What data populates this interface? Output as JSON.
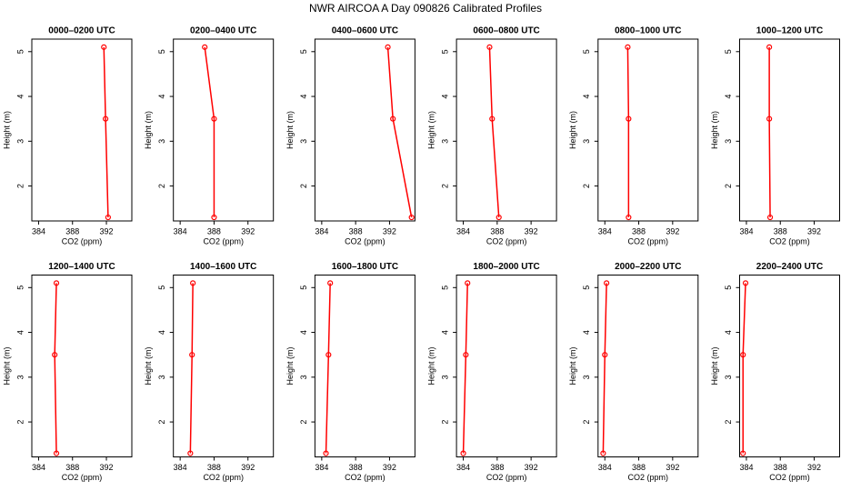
{
  "title": "NWR AIRCOA A  Day 090826  Calibrated Profiles",
  "chart_data": [
    {
      "type": "line",
      "title": "0000–0200 UTC",
      "x_label": "CO2 (ppm)",
      "y_label": "Height (m)",
      "x": [
        391.7,
        391.9,
        392.2
      ],
      "series": [
        {
          "color": "#ff0000",
          "values": [
            5.1,
            3.5,
            1.3
          ]
        }
      ],
      "xlim": [
        383.2,
        395
      ],
      "ylim": [
        1.22,
        5.28
      ],
      "xticks": [
        384,
        388,
        392
      ],
      "yticks": [
        2,
        3,
        4,
        5
      ]
    },
    {
      "type": "line",
      "title": "0200–0400 UTC",
      "x_label": "CO2 (ppm)",
      "y_label": "Height (m)",
      "x": [
        386.9,
        388.0,
        388.0
      ],
      "series": [
        {
          "color": "#ff0000",
          "values": [
            5.1,
            3.5,
            1.3
          ]
        }
      ],
      "xlim": [
        383.2,
        395
      ],
      "ylim": [
        1.22,
        5.28
      ],
      "xticks": [
        384,
        388,
        392
      ],
      "yticks": [
        2,
        3,
        4,
        5
      ]
    },
    {
      "type": "line",
      "title": "0400–0600 UTC",
      "x_label": "CO2 (ppm)",
      "y_label": "Height (m)",
      "x": [
        391.8,
        392.4,
        394.6
      ],
      "series": [
        {
          "color": "#ff0000",
          "values": [
            5.1,
            3.5,
            1.3
          ]
        }
      ],
      "xlim": [
        383.2,
        395
      ],
      "ylim": [
        1.22,
        5.28
      ],
      "xticks": [
        384,
        388,
        392
      ],
      "yticks": [
        2,
        3,
        4,
        5
      ]
    },
    {
      "type": "line",
      "title": "0600–0800 UTC",
      "x_label": "CO2 (ppm)",
      "y_label": "Height (m)",
      "x": [
        387.1,
        387.4,
        388.2
      ],
      "series": [
        {
          "color": "#ff0000",
          "values": [
            5.1,
            3.5,
            1.3
          ]
        }
      ],
      "xlim": [
        383.2,
        395
      ],
      "ylim": [
        1.22,
        5.28
      ],
      "xticks": [
        384,
        388,
        392
      ],
      "yticks": [
        2,
        3,
        4,
        5
      ]
    },
    {
      "type": "line",
      "title": "0800–1000 UTC",
      "x_label": "CO2 (ppm)",
      "y_label": "Height (m)",
      "x": [
        386.7,
        386.8,
        386.8
      ],
      "series": [
        {
          "color": "#ff0000",
          "values": [
            5.1,
            3.5,
            1.3
          ]
        }
      ],
      "xlim": [
        383.2,
        395
      ],
      "ylim": [
        1.22,
        5.28
      ],
      "xticks": [
        384,
        388,
        392
      ],
      "yticks": [
        2,
        3,
        4,
        5
      ]
    },
    {
      "type": "line",
      "title": "1000–1200 UTC",
      "x_label": "CO2 (ppm)",
      "y_label": "Height (m)",
      "x": [
        386.7,
        386.7,
        386.8
      ],
      "series": [
        {
          "color": "#ff0000",
          "values": [
            5.1,
            3.5,
            1.3
          ]
        }
      ],
      "xlim": [
        383.2,
        395
      ],
      "ylim": [
        1.22,
        5.28
      ],
      "xticks": [
        384,
        388,
        392
      ],
      "yticks": [
        2,
        3,
        4,
        5
      ]
    },
    {
      "type": "line",
      "title": "1200–1400 UTC",
      "x_label": "CO2 (ppm)",
      "y_label": "Height (m)",
      "x": [
        386.1,
        385.9,
        386.1
      ],
      "series": [
        {
          "color": "#ff0000",
          "values": [
            5.1,
            3.5,
            1.3
          ]
        }
      ],
      "xlim": [
        383.2,
        395
      ],
      "ylim": [
        1.22,
        5.28
      ],
      "xticks": [
        384,
        388,
        392
      ],
      "yticks": [
        2,
        3,
        4,
        5
      ]
    },
    {
      "type": "line",
      "title": "1400–1600 UTC",
      "x_label": "CO2 (ppm)",
      "y_label": "Height (m)",
      "x": [
        385.5,
        385.4,
        385.2
      ],
      "series": [
        {
          "color": "#ff0000",
          "values": [
            5.1,
            3.5,
            1.3
          ]
        }
      ],
      "xlim": [
        383.2,
        395
      ],
      "ylim": [
        1.22,
        5.28
      ],
      "xticks": [
        384,
        388,
        392
      ],
      "yticks": [
        2,
        3,
        4,
        5
      ]
    },
    {
      "type": "line",
      "title": "1600–1800 UTC",
      "x_label": "CO2 (ppm)",
      "y_label": "Height (m)",
      "x": [
        385.0,
        384.8,
        384.5
      ],
      "series": [
        {
          "color": "#ff0000",
          "values": [
            5.1,
            3.5,
            1.3
          ]
        }
      ],
      "xlim": [
        383.2,
        395
      ],
      "ylim": [
        1.22,
        5.28
      ],
      "xticks": [
        384,
        388,
        392
      ],
      "yticks": [
        2,
        3,
        4,
        5
      ]
    },
    {
      "type": "line",
      "title": "1800–2000 UTC",
      "x_label": "CO2 (ppm)",
      "y_label": "Height (m)",
      "x": [
        384.5,
        384.3,
        384.0
      ],
      "series": [
        {
          "color": "#ff0000",
          "values": [
            5.1,
            3.5,
            1.3
          ]
        }
      ],
      "xlim": [
        383.2,
        395
      ],
      "ylim": [
        1.22,
        5.28
      ],
      "xticks": [
        384,
        388,
        392
      ],
      "yticks": [
        2,
        3,
        4,
        5
      ]
    },
    {
      "type": "line",
      "title": "2000–2200 UTC",
      "x_label": "CO2 (ppm)",
      "y_label": "Height (m)",
      "x": [
        384.2,
        384.0,
        383.8
      ],
      "series": [
        {
          "color": "#ff0000",
          "values": [
            5.1,
            3.5,
            1.3
          ]
        }
      ],
      "xlim": [
        383.2,
        395
      ],
      "ylim": [
        1.22,
        5.28
      ],
      "xticks": [
        384,
        388,
        392
      ],
      "yticks": [
        2,
        3,
        4,
        5
      ]
    },
    {
      "type": "line",
      "title": "2200–2400 UTC",
      "x_label": "CO2 (ppm)",
      "y_label": "Height (m)",
      "x": [
        383.9,
        383.6,
        383.6
      ],
      "series": [
        {
          "color": "#ff0000",
          "values": [
            5.1,
            3.5,
            1.3
          ]
        }
      ],
      "xlim": [
        383.2,
        395
      ],
      "ylim": [
        1.22,
        5.28
      ],
      "xticks": [
        384,
        388,
        392
      ],
      "yticks": [
        2,
        3,
        4,
        5
      ]
    }
  ]
}
